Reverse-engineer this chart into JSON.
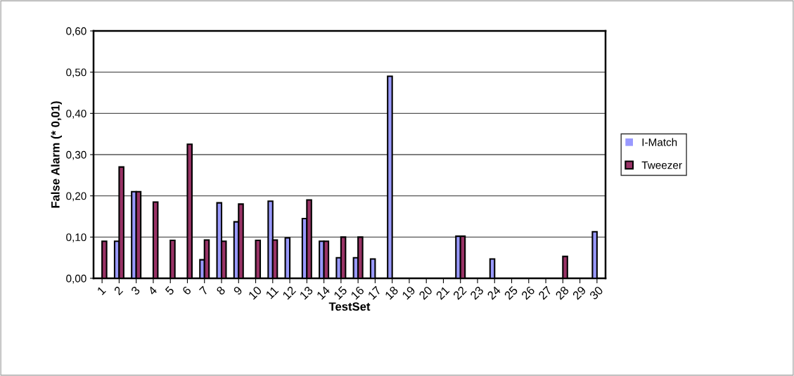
{
  "chart_data": {
    "type": "bar",
    "xlabel": "TestSet",
    "ylabel": "False Alarm (* 0,01)",
    "categories": [
      "1",
      "2",
      "3",
      "4",
      "5",
      "6",
      "7",
      "8",
      "9",
      "10",
      "11",
      "12",
      "13",
      "14",
      "15",
      "16",
      "17",
      "18",
      "19",
      "20",
      "21",
      "22",
      "23",
      "24",
      "25",
      "26",
      "27",
      "28",
      "29",
      "30"
    ],
    "series": [
      {
        "name": "I-Match",
        "color": "#9999ff",
        "values": [
          0,
          0.09,
          0.21,
          0,
          0,
          0,
          0.045,
          0.183,
          0.137,
          0,
          0.187,
          0.098,
          0.145,
          0.09,
          0.05,
          0.05,
          0.047,
          0.49,
          0,
          0,
          0,
          0.102,
          0,
          0.047,
          0,
          0,
          0,
          0,
          0,
          0.113
        ]
      },
      {
        "name": "Tweezer",
        "color": "#993366",
        "values": [
          0.09,
          0.27,
          0.21,
          0.185,
          0.092,
          0.325,
          0.093,
          0.09,
          0.18,
          0.092,
          0.093,
          0,
          0.19,
          0.09,
          0.1,
          0.1,
          0,
          0,
          0,
          0,
          0,
          0.102,
          0,
          0,
          0,
          0,
          0,
          0.053,
          0,
          0
        ]
      }
    ],
    "ylim": [
      0,
      0.6
    ],
    "yticks": [
      {
        "value": 0,
        "label": "0,00"
      },
      {
        "value": 0.1,
        "label": "0,10"
      },
      {
        "value": 0.2,
        "label": "0,20"
      },
      {
        "value": 0.3,
        "label": "0,30"
      },
      {
        "value": 0.4,
        "label": "0,40"
      },
      {
        "value": 0.5,
        "label": "0,50"
      },
      {
        "value": 0.6,
        "label": "0,60"
      }
    ],
    "grid": "y",
    "legend": "right"
  }
}
